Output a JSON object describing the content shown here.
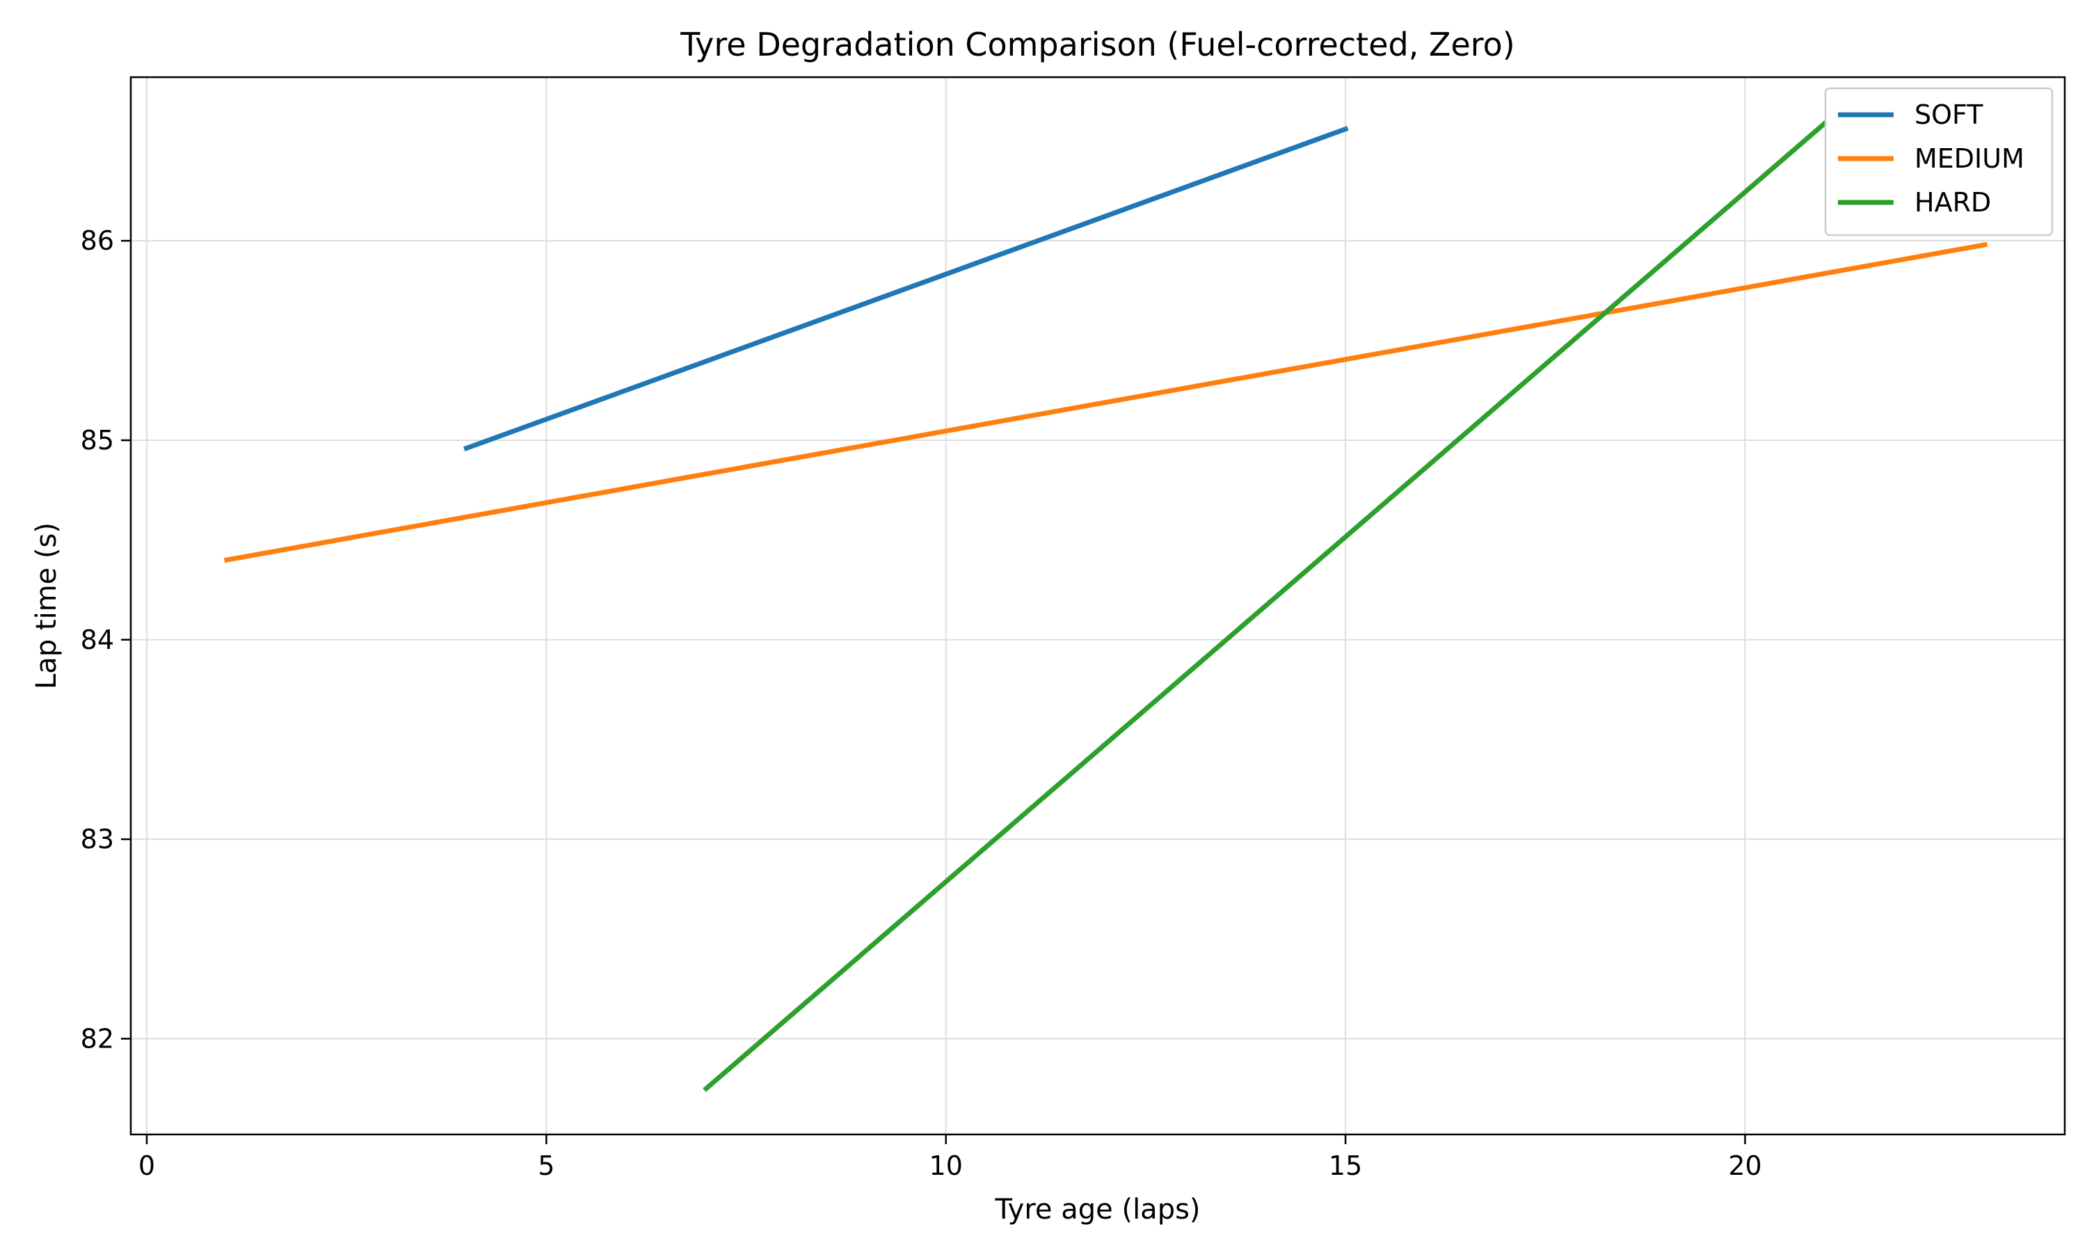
{
  "chart_data": {
    "type": "line",
    "title": "Tyre Degradation Comparison (Fuel-corrected, Zero)",
    "xlabel": "Tyre age (laps)",
    "ylabel": "Lap time (s)",
    "xlim": [
      -0.2,
      24.0
    ],
    "ylim": [
      81.52,
      86.82
    ],
    "xticks": [
      0,
      5,
      10,
      15,
      20
    ],
    "yticks": [
      82,
      83,
      84,
      85,
      86
    ],
    "grid": true,
    "legend_position": "top-right",
    "series": [
      {
        "name": "SOFT",
        "color": "#1f77b4",
        "x": [
          4,
          15
        ],
        "y": [
          84.96,
          86.56
        ]
      },
      {
        "name": "MEDIUM",
        "color": "#ff7f0e",
        "x": [
          1,
          23
        ],
        "y": [
          84.4,
          85.98
        ]
      },
      {
        "name": "HARD",
        "color": "#2ca02c",
        "x": [
          7,
          21
        ],
        "y": [
          81.75,
          86.59
        ]
      }
    ]
  }
}
